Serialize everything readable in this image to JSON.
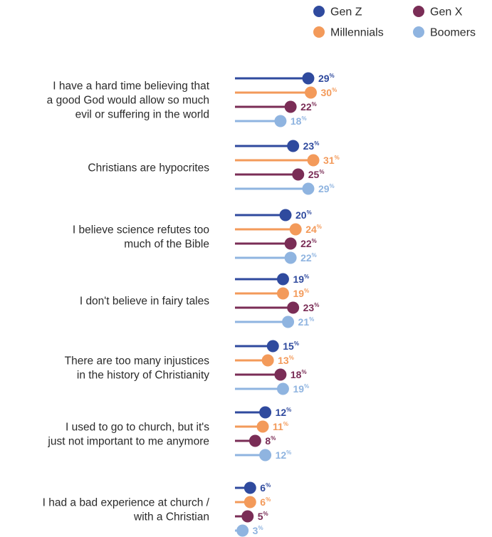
{
  "chart_data": {
    "type": "lollipop",
    "series": [
      {
        "name": "Gen Z",
        "color": "#2f4a9e",
        "values": [
          29,
          23,
          20,
          19,
          15,
          12,
          6
        ]
      },
      {
        "name": "Millennials",
        "color": "#f39a5a",
        "values": [
          30,
          31,
          24,
          19,
          13,
          11,
          6
        ]
      },
      {
        "name": "Gen X",
        "color": "#7a2d56",
        "values": [
          22,
          25,
          22,
          23,
          18,
          8,
          5
        ]
      },
      {
        "name": "Boomers",
        "color": "#8fb4e0",
        "values": [
          18,
          29,
          22,
          21,
          19,
          12,
          3
        ]
      }
    ],
    "categories": [
      [
        "I have a hard time believing that",
        "a good God would allow so much",
        "evil or suffering in the world"
      ],
      [
        "Christians are hypocrites"
      ],
      [
        "I believe science refutes too",
        "much of the Bible"
      ],
      [
        "I don't believe in fairy tales"
      ],
      [
        "There are too many injustices",
        "in the history of Christianity"
      ],
      [
        "I used to go to church, but it's",
        "just not important to me anymore"
      ],
      [
        "I had a bad experience at church /",
        "with a Christian"
      ]
    ],
    "value_suffix": "%",
    "legend_order": [
      0,
      2,
      1,
      3
    ],
    "legend_position": "top-right",
    "grid": false
  }
}
